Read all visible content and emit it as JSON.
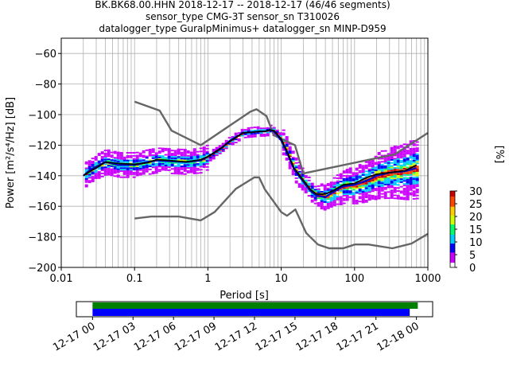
{
  "chart_data": {
    "type": "heatmap",
    "title_lines": [
      "BK.BK68.00.HHN   2018-12-17 -- 2018-12-17  (46/46 segments)",
      "sensor_type CMG-3T sensor_sn T310026",
      "datalogger_type GuralpMinimus+ datalogger_sn MINP-D959"
    ],
    "xlabel": "Period [s]",
    "ylabel": "Power [m²/s⁴/Hz] [dB]",
    "xscale": "log",
    "xlim": [
      0.01,
      1000
    ],
    "ylim": [
      -200,
      -50
    ],
    "xticks": [
      0.01,
      0.1,
      1,
      10,
      100,
      1000
    ],
    "xtick_labels": [
      "0.01",
      "0.1",
      "1",
      "10",
      "100",
      "1000"
    ],
    "yticks": [
      -60,
      -80,
      -100,
      -120,
      -140,
      -160,
      -180,
      -200
    ],
    "ytick_labels": [
      "−60",
      "−80",
      "−100",
      "−120",
      "−140",
      "−160",
      "−180",
      "−200"
    ],
    "grid": true,
    "noise_model_high": {
      "color": "#666666",
      "x": [
        0.1,
        0.22,
        0.32,
        0.8,
        3.8,
        4.6,
        6.3,
        7.9,
        15.4,
        20,
        354.8,
        1000
      ],
      "y": [
        -91.5,
        -97.4,
        -110.5,
        -120,
        -98,
        -96.5,
        -101,
        -113.5,
        -120,
        -138.5,
        -126,
        -112
      ]
    },
    "noise_model_low": {
      "color": "#666666",
      "x": [
        0.1,
        0.17,
        0.4,
        0.8,
        1.24,
        2.4,
        4.3,
        5.0,
        6.0,
        10,
        12,
        15.6,
        21.9,
        31.6,
        45,
        70,
        101,
        154,
        328,
        600,
        1000
      ],
      "y": [
        -168,
        -166.7,
        -166.7,
        -169.2,
        -163.7,
        -148.6,
        -141.1,
        -141.1,
        -149,
        -163.8,
        -166.2,
        -162.1,
        -177.5,
        -185,
        -187.5,
        -187.5,
        -185,
        -185,
        -187.5,
        -184.4,
        -178
      ]
    },
    "mean_psd": {
      "color": "#000000",
      "x": [
        0.02,
        0.025,
        0.03,
        0.04,
        0.06,
        0.1,
        0.15,
        0.2,
        0.3,
        0.5,
        0.8,
        1.0,
        1.5,
        2,
        3,
        4,
        5,
        6,
        7,
        8,
        10,
        12,
        15,
        20,
        25,
        30,
        40,
        50,
        70,
        100,
        150,
        200,
        300,
        500,
        700
      ],
      "y": [
        -140,
        -137,
        -135,
        -131,
        -132,
        -132.5,
        -131.5,
        -129.5,
        -130,
        -131,
        -129.5,
        -127.5,
        -122,
        -117.5,
        -112,
        -111.5,
        -111,
        -111,
        -110,
        -110.5,
        -116,
        -124,
        -135,
        -143,
        -149,
        -152,
        -152,
        -150,
        -146,
        -145,
        -141,
        -139,
        -138,
        -136.5,
        -133
      ]
    },
    "mode_psd": {
      "color": "#0000cc",
      "x": [
        0.02,
        0.025,
        0.03,
        0.04,
        0.06,
        0.1,
        0.15,
        0.2,
        0.3,
        0.5,
        0.8,
        1.0,
        1.5,
        2,
        3,
        4,
        5,
        6,
        7,
        8,
        10,
        12,
        15,
        20,
        25,
        30,
        40,
        50,
        70,
        100,
        150,
        200,
        300,
        500,
        700
      ],
      "y": [
        -140,
        -136,
        -134,
        -131,
        -133,
        -133,
        -131,
        -130,
        -130.5,
        -131,
        -130,
        -127.5,
        -122.5,
        -117,
        -112,
        -111.5,
        -111,
        -111,
        -110,
        -111,
        -117,
        -125,
        -136,
        -144,
        -150,
        -153,
        -154,
        -151,
        -147,
        -146,
        -143,
        -140,
        -138,
        -137,
        -135
      ]
    },
    "colorbar": {
      "label": "[%]",
      "min": 0,
      "max": 30,
      "ticks": [
        0,
        5,
        10,
        15,
        20,
        25,
        30
      ],
      "tick_labels": [
        "0",
        "5",
        "10",
        "15",
        "20",
        "25",
        "30"
      ],
      "colormap": [
        "#ffffff",
        "#cc00ff",
        "#0000ff",
        "#00ccff",
        "#00ff66",
        "#ccff00",
        "#ffcc00",
        "#ff4400",
        "#cc0000"
      ]
    },
    "timeline": {
      "tick_labels": [
        "12-17 00",
        "12-17 03",
        "12-17 06",
        "12-17 09",
        "12-17 12",
        "12-17 15",
        "12-17 18",
        "12-17 21",
        "12-18 00"
      ],
      "tick_hours": [
        0,
        3,
        6,
        9,
        12,
        15,
        18,
        21,
        24
      ],
      "xlim_hours": [
        -1.2,
        25.2
      ],
      "data_coverage": {
        "color": "#008000",
        "start_hour": 0,
        "end_hour": 24.1
      },
      "psd_coverage": {
        "color": "#0000ff",
        "start_hour": 0,
        "end_hour": 23.5
      }
    }
  }
}
